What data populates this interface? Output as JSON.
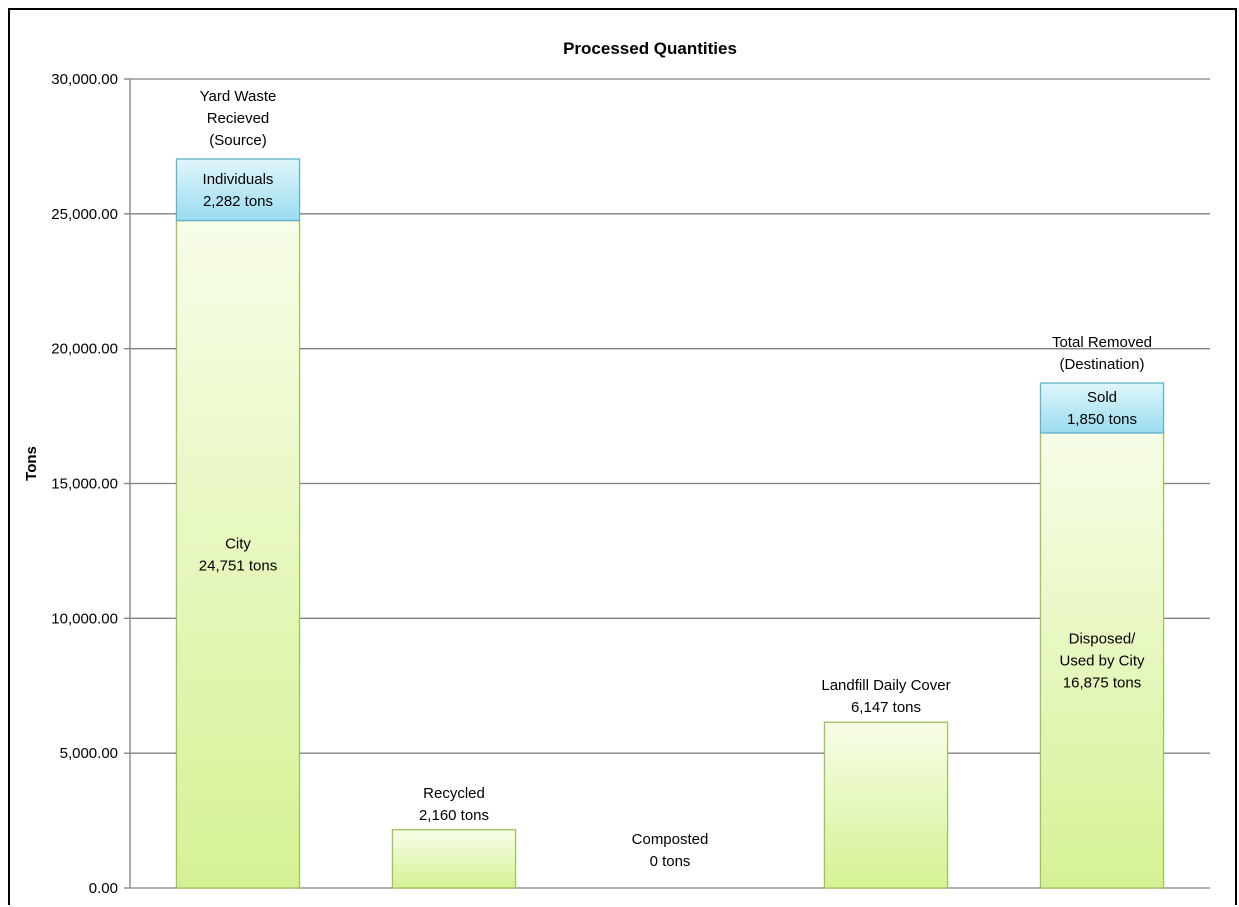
{
  "chart_data": {
    "type": "bar",
    "stacked": true,
    "title": "Processed Quantities",
    "xlabel": "",
    "ylabel": "Tons",
    "ylim": [
      0,
      30000
    ],
    "y_ticks": [
      0,
      5000,
      10000,
      15000,
      20000,
      25000,
      30000
    ],
    "y_tick_labels": [
      "0.00",
      "5,000.00",
      "10,000.00",
      "15,000.00",
      "20,000.00",
      "25,000.00",
      "30,000.00"
    ],
    "grid": true,
    "legend": "none",
    "colors": {
      "base_fill_top": "#f7fde8",
      "base_fill_bottom": "#d6f194",
      "base_stroke": "#9bc45a",
      "top_fill_top": "#e0f6fb",
      "top_fill_bottom": "#9adcf0",
      "top_stroke": "#5fb3cc",
      "grid": "#808080"
    },
    "bars": [
      {
        "category_label": [
          "Yard Waste",
          "Recieved",
          "(Source)"
        ],
        "segments": [
          {
            "kind": "base",
            "value": 24751,
            "label": [
              "City",
              "24,751 tons"
            ]
          },
          {
            "kind": "top",
            "value": 2282,
            "label": [
              "Individuals",
              "2,282 tons"
            ]
          }
        ]
      },
      {
        "category_label": [],
        "segments": [
          {
            "kind": "base",
            "value": 2160,
            "label": [
              "Recycled",
              "2,160 tons"
            ]
          }
        ]
      },
      {
        "category_label": [],
        "segments": [
          {
            "kind": "base",
            "value": 0,
            "label": [
              "Composted",
              "0 tons"
            ]
          }
        ]
      },
      {
        "category_label": [],
        "segments": [
          {
            "kind": "base",
            "value": 6147,
            "label": [
              "Landfill Daily Cover",
              "6,147 tons"
            ]
          }
        ]
      },
      {
        "category_label": [
          "Total Removed",
          "(Destination)"
        ],
        "segments": [
          {
            "kind": "base",
            "value": 16875,
            "label": [
              "Disposed/",
              "Used by City",
              "16,875 tons"
            ]
          },
          {
            "kind": "top",
            "value": 1850,
            "label": [
              "Sold",
              "1,850 tons"
            ]
          }
        ]
      }
    ]
  }
}
